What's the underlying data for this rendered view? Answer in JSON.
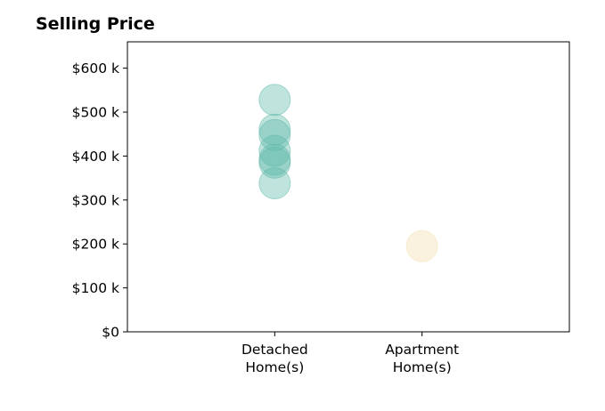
{
  "chart_data": {
    "type": "scatter",
    "title": "Selling Price",
    "xlabel": "",
    "ylabel": "",
    "categories": [
      "Detached\nHome(s)",
      "Apartment\nHome(s)"
    ],
    "x_range": [
      -1,
      2
    ],
    "ylim": [
      0,
      660000
    ],
    "y_ticks": [
      0,
      100000,
      200000,
      300000,
      400000,
      500000,
      600000
    ],
    "y_tick_labels": [
      "$0",
      "$100 k",
      "$200 k",
      "$300 k",
      "$400 k",
      "$500 k",
      "$600 k"
    ],
    "grid": false,
    "legend": "none",
    "series": [
      {
        "category_index": 0,
        "color": "#5fb8aa",
        "values": [
          528000,
          460000,
          448000,
          412000,
          392000,
          385000,
          338000
        ]
      },
      {
        "category_index": 1,
        "color": "#f2dfb0",
        "values": [
          195000
        ]
      }
    ],
    "marker_opacity": 0.4,
    "edge_color": "#2e9a8a"
  }
}
